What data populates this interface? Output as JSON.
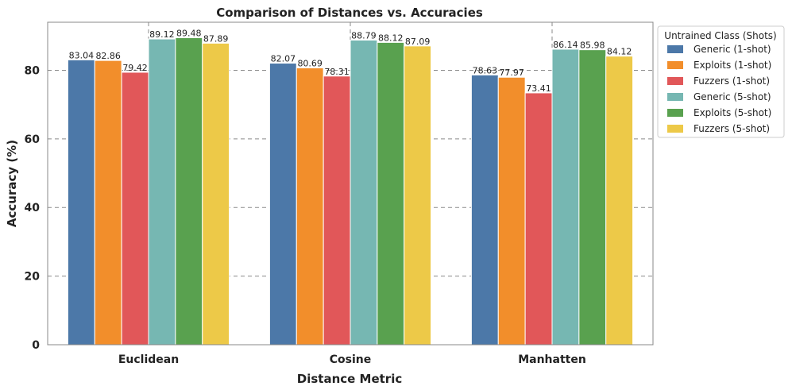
{
  "chart_data": {
    "type": "bar",
    "title": "Comparison of Distances vs. Accuracies",
    "xlabel": "Distance Metric",
    "ylabel": "Accuracy (%)",
    "categories": [
      "Euclidean",
      "Cosine",
      "Manhatten"
    ],
    "ylim": [
      0,
      94
    ],
    "yticks": [
      0,
      20,
      40,
      60,
      80
    ],
    "grid": true,
    "legend_title": "Untrained Class (Shots)",
    "legend_position": "outside-top-right",
    "series": [
      {
        "name": "Generic (1-shot)",
        "color": "#4c78a8",
        "values": [
          83.04,
          82.07,
          78.63
        ],
        "labels": [
          "83.04",
          "82.07",
          "78.63"
        ]
      },
      {
        "name": "Exploits (1-shot)",
        "color": "#f28e2b",
        "values": [
          82.86,
          80.69,
          77.97
        ],
        "labels": [
          "82.86",
          "80.69",
          "77.97"
        ]
      },
      {
        "name": "Fuzzers (1-shot)",
        "color": "#e15759",
        "values": [
          79.42,
          78.31,
          73.41
        ],
        "labels": [
          "79.42",
          "78.31",
          "73.41"
        ]
      },
      {
        "name": "Generic (5-shot)",
        "color": "#76b7b2",
        "values": [
          89.12,
          88.79,
          86.14
        ],
        "labels": [
          "89.12",
          "88.79",
          "86.14"
        ]
      },
      {
        "name": "Exploits (5-shot)",
        "color": "#59a14f",
        "values": [
          89.48,
          88.12,
          85.98
        ],
        "labels": [
          "89.48",
          "88.12",
          "85.98"
        ]
      },
      {
        "name": "Fuzzers (5-shot)",
        "color": "#edc948",
        "values": [
          87.89,
          87.09,
          84.12
        ],
        "labels": [
          "87.89",
          "87.09",
          "84.12"
        ]
      }
    ]
  }
}
